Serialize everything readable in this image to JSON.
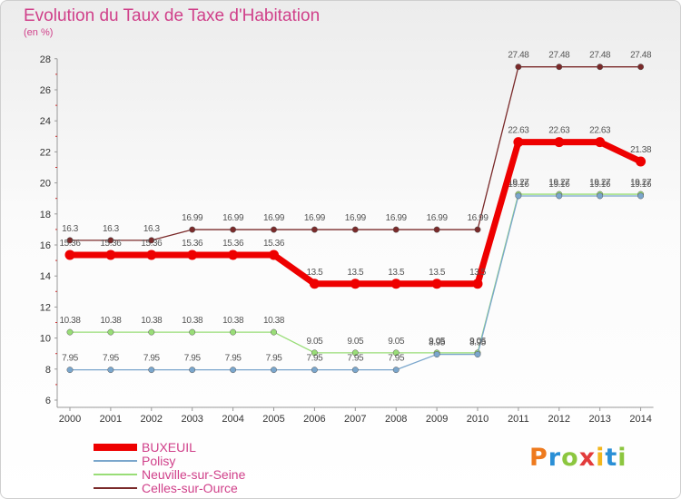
{
  "title": "Evolution du Taux de Taxe d'Habitation",
  "unit": "(en %)",
  "logo": "Proxiti",
  "colors": {
    "title": "#d0408a"
  },
  "chart_data": {
    "type": "line",
    "title": "Evolution du Taux de Taxe d'Habitation",
    "ylabel": "(en %)",
    "xlabel": "",
    "ylim": [
      6,
      28
    ],
    "yticks": [
      6,
      8,
      10,
      12,
      14,
      16,
      18,
      20,
      22,
      24,
      26,
      28
    ],
    "x": [
      "2000",
      "2001",
      "2002",
      "2003",
      "2004",
      "2005",
      "2006",
      "2007",
      "2008",
      "2009",
      "2010",
      "2011",
      "2012",
      "2013",
      "2014"
    ],
    "grid": false,
    "legend": "bottom-left",
    "series": [
      {
        "name": "Celles-sur-Ource",
        "color": "#7a2a2a",
        "width": 1.3,
        "values": [
          16.3,
          16.3,
          16.3,
          16.99,
          16.99,
          16.99,
          16.99,
          16.99,
          16.99,
          16.99,
          16.99,
          27.48,
          27.48,
          27.48,
          27.48
        ],
        "labels": [
          "16.3",
          "16.3",
          "16.3",
          "16.99",
          "16.99",
          "16.99",
          "16.99",
          "16.99",
          "16.99",
          "16.99",
          "16.99",
          "27.48",
          "27.48",
          "27.48",
          "27.48"
        ]
      },
      {
        "name": "Neuville-sur-Seine",
        "color": "#99dd77",
        "width": 1.3,
        "values": [
          10.38,
          10.38,
          10.38,
          10.38,
          10.38,
          10.38,
          9.05,
          9.05,
          9.05,
          9.05,
          9.05,
          19.27,
          19.27,
          19.27,
          19.27
        ],
        "labels": [
          "10.38",
          "10.38",
          "10.38",
          "10.38",
          "10.38",
          "10.38",
          "9.05",
          "9.05",
          "9.05",
          "9.05",
          "9.05",
          "19.27",
          "19.27",
          "19.27",
          "19.27"
        ]
      },
      {
        "name": "Polisy",
        "color": "#7aa6cc",
        "width": 1.3,
        "values": [
          7.95,
          7.95,
          7.95,
          7.95,
          7.95,
          7.95,
          7.95,
          7.95,
          7.95,
          8.95,
          8.95,
          19.16,
          19.16,
          19.16,
          19.16
        ],
        "labels": [
          "7.95",
          "7.95",
          "7.95",
          "7.95",
          "7.95",
          "7.95",
          "7.95",
          "7.95",
          "7.95",
          "8.95",
          "8.95",
          "19.16",
          "19.16",
          "19.16",
          "19.16"
        ]
      },
      {
        "name": "BUXEUIL",
        "color": "#ee0000",
        "width": 7,
        "values": [
          15.36,
          15.36,
          15.36,
          15.36,
          15.36,
          15.36,
          13.5,
          13.5,
          13.5,
          13.5,
          13.5,
          22.63,
          22.63,
          22.63,
          21.38
        ],
        "labels": [
          "15.36",
          "15.36",
          "15.36",
          "15.36",
          "15.36",
          "15.36",
          "13.5",
          "13.5",
          "13.5",
          "13.5",
          "13.5",
          "22.63",
          "22.63",
          "22.63",
          "21.38"
        ]
      }
    ]
  },
  "legend": [
    {
      "name": "BUXEUIL",
      "color": "#ee0000"
    },
    {
      "name": "Polisy",
      "color": "#7aa6cc"
    },
    {
      "name": "Neuville-sur-Seine",
      "color": "#99dd77"
    },
    {
      "name": "Celles-sur-Ource",
      "color": "#7a2a2a"
    }
  ]
}
